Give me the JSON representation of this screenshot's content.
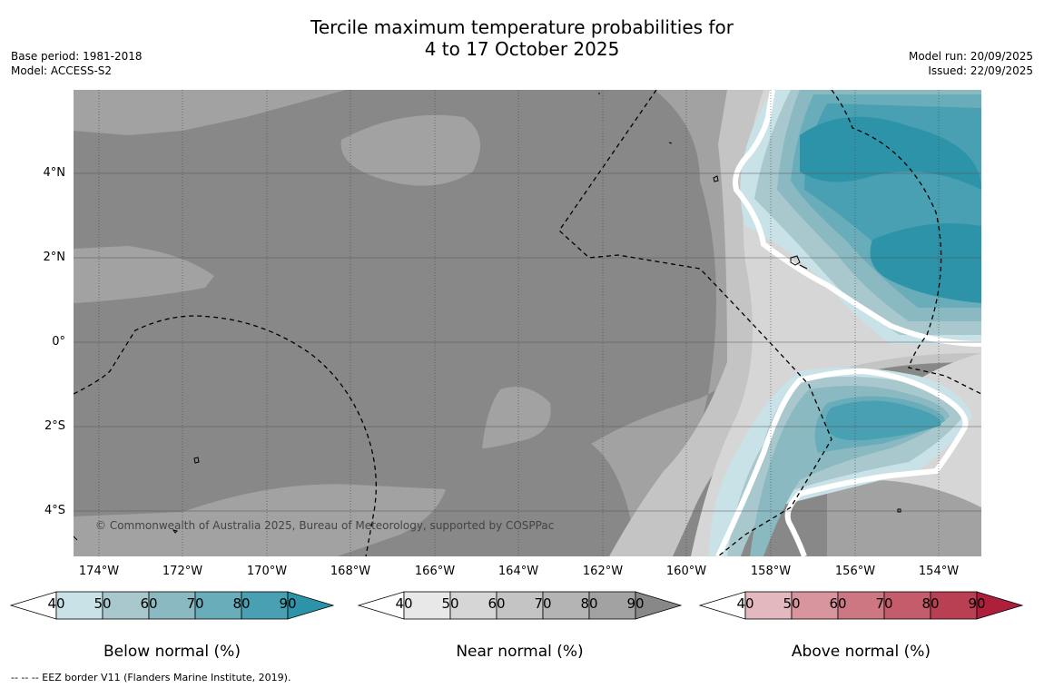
{
  "title_line1": "Tercile maximum temperature probabilities for",
  "title_line2": "4 to 17 October 2025",
  "meta_left": {
    "base_period": "Base period: 1981-2018",
    "model": "Model: ACCESS-S2"
  },
  "meta_right": {
    "model_run": "Model run: 20/09/2025",
    "issued": "Issued: 22/09/2025"
  },
  "map": {
    "copyright": "© Commonwealth of Australia 2025, Bureau of Meteorology, supported by COSPPac",
    "lat_labels": [
      "4°N",
      "2°N",
      "0°",
      "2°S",
      "4°S"
    ],
    "lon_labels": [
      "174°W",
      "172°W",
      "170°W",
      "168°W",
      "166°W",
      "164°W",
      "162°W",
      "160°W",
      "158°W",
      "156°W",
      "154°W"
    ]
  },
  "colorbars": [
    {
      "title": "Below normal (%)",
      "ticks": [
        "40",
        "50",
        "60",
        "70",
        "80",
        "90"
      ],
      "colors": [
        "#c9e2e8",
        "#a8c8cd",
        "#8ab9c1",
        "#6aadba",
        "#48a0b2",
        "#2d93a8"
      ]
    },
    {
      "title": "Near normal (%)",
      "ticks": [
        "40",
        "50",
        "60",
        "70",
        "80",
        "90"
      ],
      "colors": [
        "#e8e8e8",
        "#d6d6d6",
        "#c4c4c4",
        "#b4b4b4",
        "#a2a2a2",
        "#888888"
      ]
    },
    {
      "title": "Above normal (%)",
      "ticks": [
        "40",
        "50",
        "60",
        "70",
        "80",
        "90"
      ],
      "colors": [
        "#e3b8bf",
        "#d8959e",
        "#cc7782",
        "#c45c6b",
        "#b93f53",
        "#ad1f3a"
      ]
    }
  ],
  "footer": "--  --  -- EEZ border V11 (Flanders Marine Institute, 2019)."
}
